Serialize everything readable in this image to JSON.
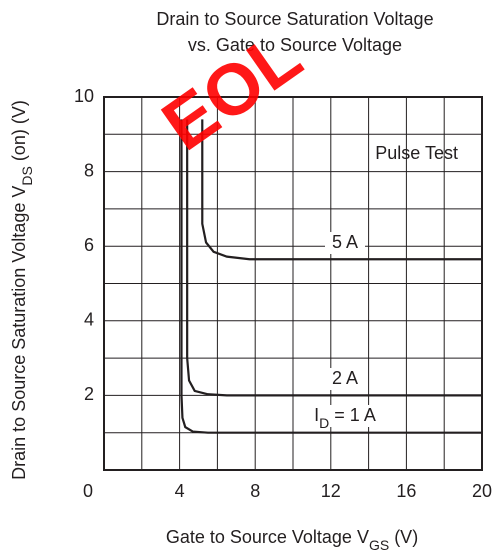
{
  "chart_data": {
    "type": "line",
    "title": [
      "Drain to Source Saturation Voltage",
      "vs. Gate to Source Voltage"
    ],
    "x_label": [
      "Gate to Source Voltage  V",
      "GS",
      "  (V)"
    ],
    "y_label": [
      "Drain to Source Saturation Voltage  V",
      "DS",
      " (on)  (V)"
    ],
    "annotation": "Pulse Test",
    "watermark": "EOL",
    "watermark_color": "#ff0000",
    "xlim": [
      0,
      20
    ],
    "ylim": [
      0,
      10
    ],
    "xticks": [
      0,
      4,
      8,
      12,
      16,
      20
    ],
    "yticks": [
      2,
      4,
      6,
      8,
      10
    ],
    "x_grid": [
      0,
      2,
      4,
      6,
      8,
      10,
      12,
      14,
      16,
      18,
      20
    ],
    "y_grid": [
      0,
      1,
      2,
      3,
      4,
      5,
      6,
      7,
      8,
      9,
      10
    ],
    "grid": true,
    "series": [
      {
        "name": "5 A",
        "color": "#231f20",
        "x": [
          5.2,
          5.2,
          5.4,
          5.8,
          6.5,
          7.7,
          20
        ],
        "values": [
          9.4,
          6.6,
          6.1,
          5.85,
          5.72,
          5.65,
          5.65
        ]
      },
      {
        "name": "2 A",
        "color": "#231f20",
        "x": [
          4.4,
          4.4,
          4.5,
          4.8,
          5.5,
          6.5,
          20
        ],
        "values": [
          9.4,
          3.0,
          2.4,
          2.12,
          2.03,
          2.0,
          2.0
        ]
      },
      {
        "name": [
          "I",
          "D",
          " = 1 A"
        ],
        "color": "#231f20",
        "x": [
          4.1,
          4.1,
          4.15,
          4.3,
          4.7,
          5.5,
          20
        ],
        "values": [
          9.4,
          2.0,
          1.4,
          1.15,
          1.03,
          1.0,
          1.0
        ]
      }
    ]
  }
}
